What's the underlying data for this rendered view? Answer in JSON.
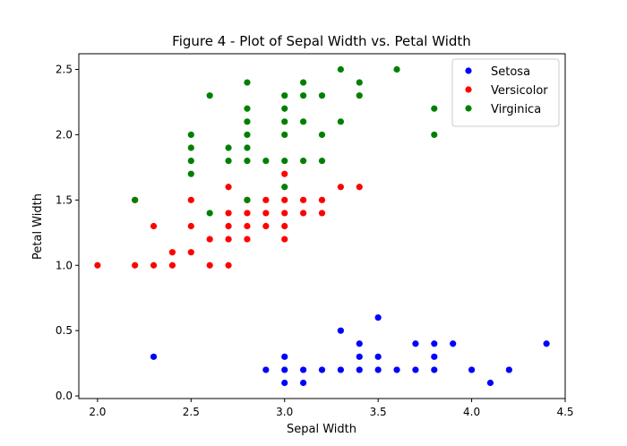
{
  "chart_data": {
    "type": "scatter",
    "title": "Figure 4 - Plot of Sepal Width vs. Petal Width",
    "xlabel": "Sepal Width",
    "ylabel": "Petal Width",
    "xlim": [
      1.9,
      4.5
    ],
    "ylim": [
      -0.02,
      2.62
    ],
    "xticks": [
      2.0,
      2.5,
      3.0,
      3.5,
      4.0,
      4.5
    ],
    "xtick_labels": [
      "2.0",
      "2.5",
      "3.0",
      "3.5",
      "4.0",
      "4.5"
    ],
    "yticks": [
      0.0,
      0.5,
      1.0,
      1.5,
      2.0,
      2.5
    ],
    "ytick_labels": [
      "0.0",
      "0.5",
      "1.0",
      "1.5",
      "2.0",
      "2.5"
    ],
    "grid": false,
    "legend_position": "top-right",
    "series": [
      {
        "name": "Setosa",
        "color": "#0000ff",
        "points": [
          [
            2.3,
            0.3
          ],
          [
            2.9,
            0.2
          ],
          [
            3.0,
            0.1
          ],
          [
            3.0,
            0.2
          ],
          [
            3.0,
            0.3
          ],
          [
            3.1,
            0.1
          ],
          [
            3.1,
            0.2
          ],
          [
            3.2,
            0.2
          ],
          [
            3.3,
            0.2
          ],
          [
            3.3,
            0.5
          ],
          [
            3.4,
            0.2
          ],
          [
            3.4,
            0.3
          ],
          [
            3.4,
            0.4
          ],
          [
            3.5,
            0.2
          ],
          [
            3.5,
            0.3
          ],
          [
            3.5,
            0.6
          ],
          [
            3.6,
            0.2
          ],
          [
            3.7,
            0.2
          ],
          [
            3.7,
            0.4
          ],
          [
            3.8,
            0.2
          ],
          [
            3.8,
            0.3
          ],
          [
            3.8,
            0.4
          ],
          [
            3.9,
            0.4
          ],
          [
            4.0,
            0.2
          ],
          [
            4.1,
            0.1
          ],
          [
            4.2,
            0.2
          ],
          [
            4.4,
            0.4
          ]
        ]
      },
      {
        "name": "Versicolor",
        "color": "#ff0000",
        "points": [
          [
            2.0,
            1.0
          ],
          [
            2.2,
            1.0
          ],
          [
            2.2,
            1.5
          ],
          [
            2.3,
            1.0
          ],
          [
            2.3,
            1.3
          ],
          [
            2.4,
            1.0
          ],
          [
            2.4,
            1.1
          ],
          [
            2.5,
            1.1
          ],
          [
            2.5,
            1.3
          ],
          [
            2.5,
            1.5
          ],
          [
            2.6,
            1.0
          ],
          [
            2.6,
            1.2
          ],
          [
            2.7,
            1.0
          ],
          [
            2.7,
            1.2
          ],
          [
            2.7,
            1.3
          ],
          [
            2.7,
            1.4
          ],
          [
            2.7,
            1.6
          ],
          [
            2.8,
            1.2
          ],
          [
            2.8,
            1.3
          ],
          [
            2.8,
            1.4
          ],
          [
            2.8,
            1.5
          ],
          [
            2.9,
            1.3
          ],
          [
            2.9,
            1.4
          ],
          [
            2.9,
            1.5
          ],
          [
            3.0,
            1.2
          ],
          [
            3.0,
            1.3
          ],
          [
            3.0,
            1.4
          ],
          [
            3.0,
            1.5
          ],
          [
            3.0,
            1.7
          ],
          [
            3.1,
            1.4
          ],
          [
            3.1,
            1.5
          ],
          [
            3.2,
            1.4
          ],
          [
            3.2,
            1.5
          ],
          [
            3.3,
            1.6
          ],
          [
            3.4,
            1.6
          ]
        ]
      },
      {
        "name": "Virginica",
        "color": "#008000",
        "points": [
          [
            2.2,
            1.5
          ],
          [
            2.5,
            1.7
          ],
          [
            2.5,
            1.8
          ],
          [
            2.5,
            1.9
          ],
          [
            2.5,
            2.0
          ],
          [
            2.6,
            1.4
          ],
          [
            2.6,
            2.3
          ],
          [
            2.7,
            1.8
          ],
          [
            2.7,
            1.9
          ],
          [
            2.8,
            1.5
          ],
          [
            2.8,
            1.8
          ],
          [
            2.8,
            1.9
          ],
          [
            2.8,
            2.0
          ],
          [
            2.8,
            2.1
          ],
          [
            2.8,
            2.2
          ],
          [
            2.8,
            2.4
          ],
          [
            2.9,
            1.8
          ],
          [
            3.0,
            1.6
          ],
          [
            3.0,
            1.8
          ],
          [
            3.0,
            2.0
          ],
          [
            3.0,
            2.1
          ],
          [
            3.0,
            2.2
          ],
          [
            3.0,
            2.3
          ],
          [
            3.1,
            1.8
          ],
          [
            3.1,
            2.1
          ],
          [
            3.1,
            2.3
          ],
          [
            3.1,
            2.4
          ],
          [
            3.2,
            1.8
          ],
          [
            3.2,
            2.0
          ],
          [
            3.2,
            2.3
          ],
          [
            3.3,
            2.1
          ],
          [
            3.3,
            2.5
          ],
          [
            3.4,
            2.3
          ],
          [
            3.4,
            2.4
          ],
          [
            3.6,
            2.5
          ],
          [
            3.8,
            2.0
          ],
          [
            3.8,
            2.2
          ]
        ]
      }
    ]
  }
}
